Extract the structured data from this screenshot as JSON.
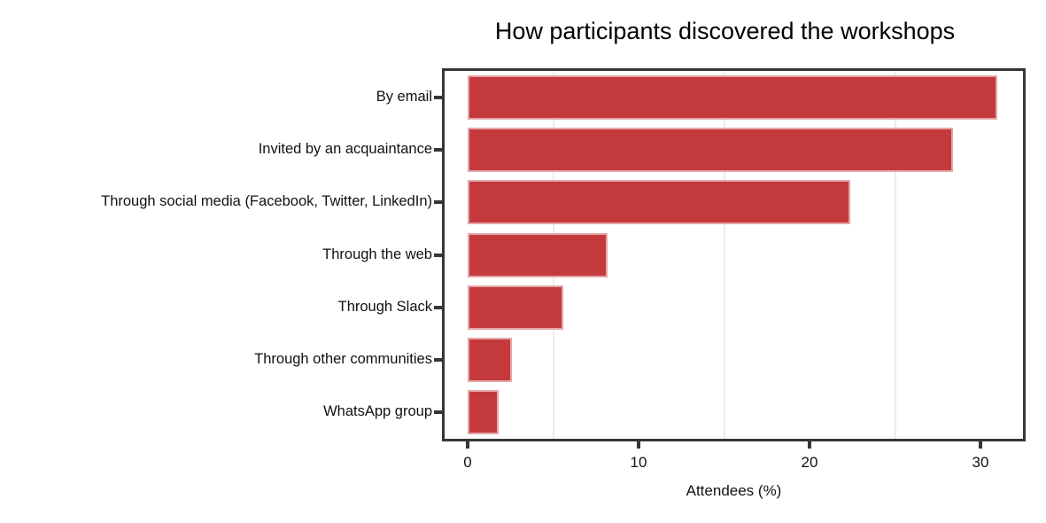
{
  "chart_data": {
    "type": "bar",
    "orientation": "horizontal",
    "title": "How participants discovered the workshops",
    "xlabel": "Attendees (%)",
    "ylabel": "",
    "categories": [
      "By email",
      "Invited by an acquaintance",
      "Through social media (Facebook, Twitter, LinkedIn)",
      "Through the web",
      "Through Slack",
      "Through other communities",
      "WhatsApp group"
    ],
    "values": [
      31.0,
      28.4,
      22.4,
      8.2,
      5.6,
      2.6,
      1.8
    ],
    "x_ticks": [
      0,
      10,
      20,
      30
    ],
    "gridlines_at": [
      5,
      15,
      25
    ],
    "xlim": [
      -1.5,
      32.6
    ],
    "grid": "vertical-light",
    "legend": "none",
    "bar_color": "#c43a3c",
    "bar_edge_color": "rgba(255,255,255,0.55)",
    "spine_color": "#363636",
    "grid_color": "#ebebeb",
    "text_color": "#111111"
  }
}
